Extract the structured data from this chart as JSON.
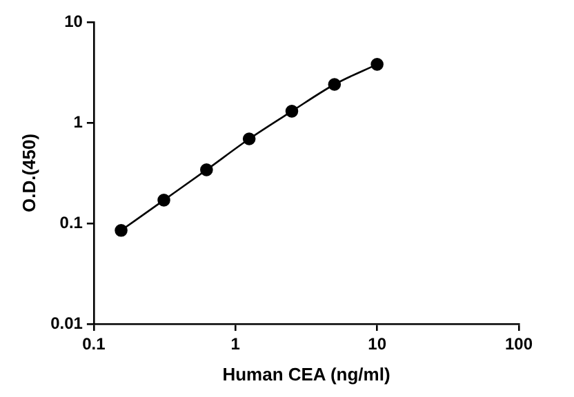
{
  "chart_data": {
    "type": "line",
    "xlabel": "Human CEA (ng/ml)",
    "ylabel": "O.D.(450)",
    "x": [
      0.156,
      0.3125,
      0.625,
      1.25,
      2.5,
      5,
      10
    ],
    "series": [
      {
        "color": "#000000",
        "values": [
          0.085,
          0.17,
          0.34,
          0.69,
          1.3,
          2.4,
          3.8
        ]
      }
    ],
    "log": "xy",
    "xlim": [
      0.1,
      100
    ],
    "xticks": [
      0.1,
      1,
      10,
      100
    ],
    "ylim": [
      0.01,
      10
    ],
    "yticks": [
      0.01,
      0.1,
      1,
      10
    ],
    "grid": false,
    "legend": false,
    "marker": "circle",
    "line_style": "solid"
  }
}
